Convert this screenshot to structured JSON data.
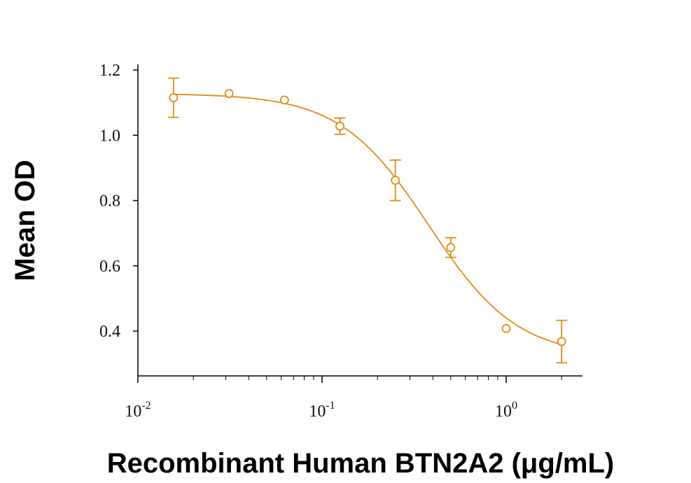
{
  "chart_data": {
    "type": "scatter",
    "title": "",
    "xlabel": "Recombinant Human BTN2A2 (μg/mL)",
    "ylabel": "Mean OD",
    "x_scale": "log",
    "xlim": [
      0.01,
      2.6
    ],
    "ylim": [
      0.25,
      1.2
    ],
    "y_ticks": [
      {
        "value": 0.4,
        "label": "0.4"
      },
      {
        "value": 0.6,
        "label": "0.6"
      },
      {
        "value": 0.8,
        "label": "0.8"
      },
      {
        "value": 1.0,
        "label": "1.0"
      },
      {
        "value": 1.2,
        "label": "1.2"
      }
    ],
    "x_ticks": [
      {
        "value": 0.01,
        "base": "10",
        "exp": "-2"
      },
      {
        "value": 0.1,
        "base": "10",
        "exp": "-1"
      },
      {
        "value": 1,
        "base": "10",
        "exp": "0"
      }
    ],
    "color": "#E08B14",
    "series": [
      {
        "points": [
          {
            "x": 0.0156,
            "y": 1.115,
            "err": 0.06
          },
          {
            "x": 0.03125,
            "y": 1.128,
            "err": 0
          },
          {
            "x": 0.0625,
            "y": 1.108,
            "err": 0
          },
          {
            "x": 0.125,
            "y": 1.028,
            "err": 0.025
          },
          {
            "x": 0.25,
            "y": 0.862,
            "err": 0.062
          },
          {
            "x": 0.5,
            "y": 0.656,
            "err": 0.03
          },
          {
            "x": 1.0,
            "y": 0.408,
            "err": 0
          },
          {
            "x": 2.0,
            "y": 0.368,
            "err": 0.065
          }
        ],
        "fit": {
          "model": "4PL",
          "top": 1.128,
          "bottom": 0.32,
          "ec50": 0.38,
          "hill": 1.8
        }
      }
    ],
    "grid": false,
    "legend": "none"
  }
}
